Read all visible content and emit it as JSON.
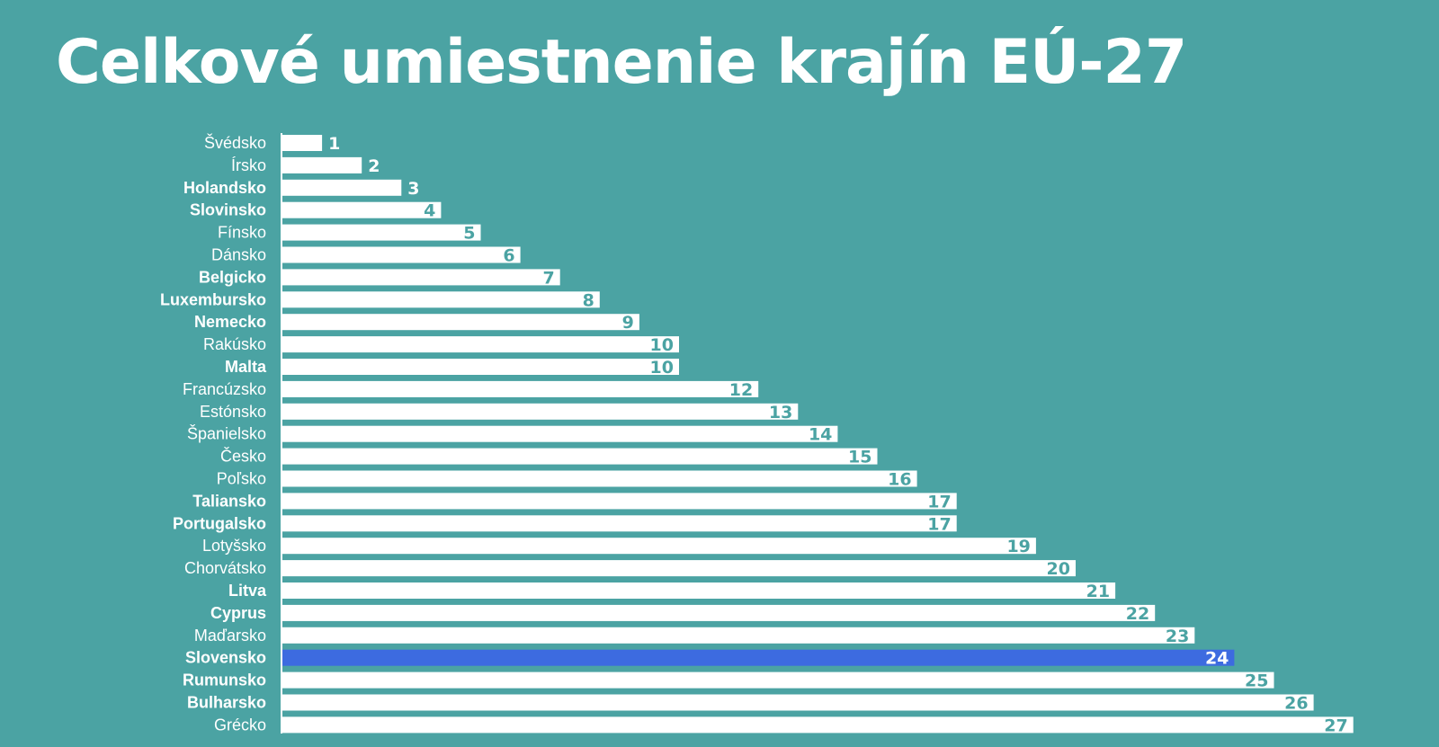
{
  "colors": {
    "background": "#4ba3a3",
    "bar": "#ffffff",
    "highlight_bar": "#3d6be0",
    "value_on_bar": "#4ba3a3",
    "value_outside": "#ffffff",
    "highlight_value": "#ffffff"
  },
  "chart_data": {
    "type": "bar",
    "orientation": "horizontal",
    "title": "Celkové umiestnenie krajín EÚ-27",
    "xlim": [
      0,
      27
    ],
    "grid": false,
    "legend": "none",
    "highlight": "Slovensko",
    "categories": [
      "Švédsko",
      "Írsko",
      "Holandsko",
      "Slovinsko",
      "Fínsko",
      "Dánsko",
      "Belgicko",
      "Luxembursko",
      "Nemecko",
      "Rakúsko",
      "Malta",
      "Francúzsko",
      "Estónsko",
      "Španielsko",
      "Česko",
      "Poľsko",
      "Taliansko",
      "Portugalsko",
      "Lotyšsko",
      "Chorvátsko",
      "Litva",
      "Cyprus",
      "Maďarsko",
      "Slovensko",
      "Rumunsko",
      "Bulharsko",
      "Grécko"
    ],
    "values": [
      1,
      2,
      3,
      4,
      5,
      6,
      7,
      8,
      9,
      10,
      10,
      12,
      13,
      14,
      15,
      16,
      17,
      17,
      19,
      20,
      21,
      22,
      23,
      24,
      25,
      26,
      27
    ],
    "bold_labels": [
      "Holandsko",
      "Slovinsko",
      "Belgicko",
      "Luxembursko",
      "Nemecko",
      "Malta",
      "Taliansko",
      "Portugalsko",
      "Litva",
      "Cyprus",
      "Slovensko",
      "Rumunsko",
      "Bulharsko"
    ]
  }
}
